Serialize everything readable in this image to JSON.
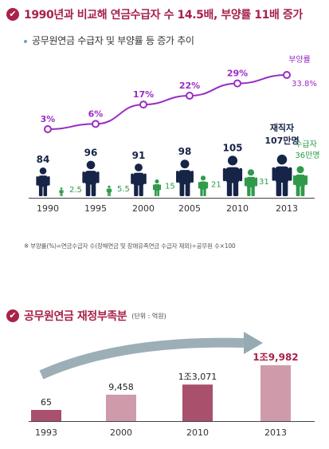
{
  "section1": {
    "title": "1990년과 비교해 연금수급자 수 14.5배, 부양률 11배 증가",
    "subtitle": "공무원연금 수급자 및 부양률 등 증가 추이",
    "note": "※ 부양률(%)=연금수급자 수(장해연금 및 장애유족연금 수급자 제외)÷공무원 수×100"
  },
  "section2": {
    "title": "공무원연금 재정부족분",
    "unit": "(단위 : 억원)"
  },
  "colors": {
    "accent": "#a8224a",
    "purple": "#9b2bc4",
    "navy": "#162447",
    "green": "#2e9a4a",
    "bar_light": "#cf9bab",
    "bar_dark": "#a8506c",
    "arrow": "#8ba1a9"
  },
  "chart_data": [
    {
      "type": "line",
      "categories": [
        "1990",
        "1995",
        "2000",
        "2005",
        "2010",
        "2013"
      ],
      "series": [
        {
          "name": "부양률",
          "values": [
            3,
            6,
            17,
            22,
            29,
            33.8
          ],
          "labels": [
            "3%",
            "6%",
            "17%",
            "22%",
            "29%",
            "33.8%"
          ]
        },
        {
          "name": "재직자",
          "values": [
            84,
            96,
            91,
            98,
            105,
            107
          ],
          "labels": [
            "84",
            "96",
            "91",
            "98",
            "105",
            "107만명"
          ]
        },
        {
          "name": "수급자",
          "values": [
            2.5,
            5.5,
            15,
            21,
            31,
            36
          ],
          "labels": [
            "2.5",
            "5.5",
            "15",
            "21",
            "31",
            "36만명"
          ]
        }
      ],
      "legend_labels": {
        "rate": "부양률",
        "employees": "재직자",
        "recipients": "수급자"
      }
    },
    {
      "type": "bar",
      "categories": [
        "1993",
        "2000",
        "2010",
        "2013"
      ],
      "values": [
        65,
        9458,
        13071,
        19982
      ],
      "labels": [
        "65",
        "9,458",
        "1조3,071",
        "1조9,982"
      ]
    }
  ]
}
